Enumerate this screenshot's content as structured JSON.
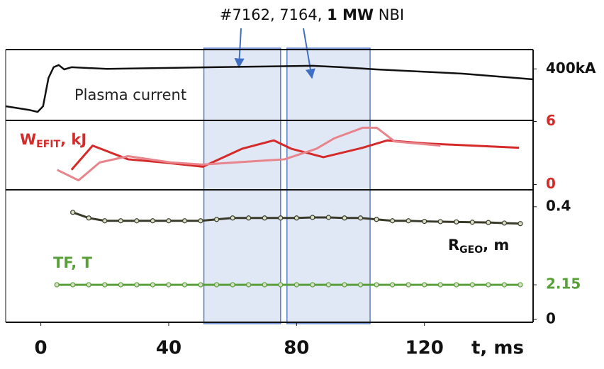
{
  "annotation": {
    "parts": [
      "#7162, 7164, ",
      "1 MW",
      " NBI"
    ],
    "spans": [
      {
        "start": 51,
        "end": 75
      },
      {
        "start": 77,
        "end": 103
      }
    ]
  },
  "chart_data": [
    {
      "type": "line",
      "label": "Plasma current",
      "xlim": [
        -11,
        154
      ],
      "ylim": [
        0,
        550
      ],
      "yticks": [
        {
          "value": 400,
          "label": "400kA"
        }
      ],
      "ytick_color": "#111111",
      "series": [
        {
          "color": "#111111",
          "x": [
            -11,
            -3.8,
            -1,
            0.7,
            2.4,
            4,
            5.6,
            7.3,
            9.6,
            20.7,
            54,
            85,
            94,
            105,
            132,
            154
          ],
          "values": [
            110,
            82,
            66,
            110,
            330,
            413,
            430,
            396,
            413,
            400,
            413,
            424,
            413,
            396,
            363,
            319
          ]
        }
      ]
    },
    {
      "type": "line",
      "label_parts": [
        "W",
        "EFIT",
        ", kJ"
      ],
      "label_color": "#d42a2a",
      "xlim": [
        -11,
        154
      ],
      "ylim": [
        -0.5,
        6.1
      ],
      "yticks": [
        0,
        6
      ],
      "ytick_color": "#d42a2a",
      "series": [
        {
          "color": "#d42a2a",
          "x": [
            9.6,
            16.2,
            27.3,
            38.4,
            50.7,
            62.9,
            72.9,
            78.4,
            88.4,
            100.7,
            108.4,
            120.7,
            149.6
          ],
          "values": [
            1.4,
            3.7,
            2.4,
            2.1,
            1.7,
            3.4,
            4.2,
            3.4,
            2.6,
            3.5,
            4.2,
            3.9,
            3.5
          ]
        },
        {
          "color": "#e8848c",
          "x": [
            5.1,
            11.8,
            18.4,
            27.3,
            40.7,
            50.7,
            60.7,
            76.2,
            86.2,
            91.8,
            100.7,
            105.1,
            110.7,
            125
          ],
          "values": [
            1.4,
            0.4,
            2.1,
            2.7,
            2.1,
            1.9,
            2.1,
            2.4,
            3.4,
            4.4,
            5.4,
            5.4,
            4.1,
            3.7
          ]
        }
      ]
    },
    {
      "type": "line",
      "xlim": [
        -11,
        154
      ],
      "ylim": [
        -0.01,
        0.46
      ],
      "yticks": [
        0,
        0.4
      ],
      "ytick_color": "#111111",
      "y2lim": [
        0,
        7.6
      ],
      "y2ticks": [
        2.15
      ],
      "y2tick_color": "#5aa03a",
      "xticks": [
        0,
        40,
        80,
        120
      ],
      "xlabel": "t, ms",
      "series": [
        {
          "name_parts": [
            "R",
            "GEO",
            ", m"
          ],
          "color": "#3a3a2a",
          "markers": true,
          "x": [
            10,
            15,
            20,
            25,
            30,
            35,
            40,
            45,
            50,
            55,
            60,
            65,
            70,
            75,
            80,
            85,
            90,
            95,
            100,
            105,
            110,
            115,
            120,
            125,
            130,
            135,
            140,
            145,
            150
          ],
          "values": [
            0.38,
            0.36,
            0.35,
            0.35,
            0.35,
            0.35,
            0.35,
            0.35,
            0.35,
            0.355,
            0.36,
            0.36,
            0.36,
            0.36,
            0.36,
            0.362,
            0.362,
            0.36,
            0.36,
            0.355,
            0.35,
            0.35,
            0.348,
            0.347,
            0.346,
            0.345,
            0.344,
            0.342,
            0.34
          ]
        },
        {
          "name": "TF, T",
          "color": "#5aa03a",
          "markers": true,
          "axis": "y2",
          "x": [
            5,
            10,
            15,
            20,
            25,
            30,
            35,
            40,
            45,
            50,
            55,
            60,
            65,
            70,
            75,
            80,
            85,
            90,
            95,
            100,
            105,
            110,
            115,
            120,
            125,
            130,
            135,
            140,
            145,
            150
          ],
          "values": [
            2.15,
            2.15,
            2.15,
            2.15,
            2.15,
            2.15,
            2.15,
            2.15,
            2.15,
            2.15,
            2.15,
            2.15,
            2.15,
            2.15,
            2.15,
            2.15,
            2.15,
            2.15,
            2.15,
            2.15,
            2.15,
            2.15,
            2.15,
            2.15,
            2.15,
            2.15,
            2.15,
            2.15,
            2.15,
            2.15
          ]
        }
      ]
    }
  ]
}
